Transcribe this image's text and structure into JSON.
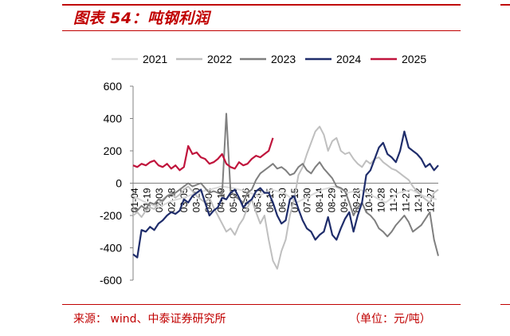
{
  "figure": {
    "title": "图表 54：吨钢利润",
    "source": "来源：  wind、中泰证券研究所",
    "unit": "（单位：元/吨）"
  },
  "colors": {
    "accent": "#c00000",
    "s2021": "#d9d9d9",
    "s2022": "#bfbfbf",
    "s2023": "#7f7f7f",
    "s2024": "#1f2d6b",
    "s2025": "#c0143c"
  },
  "chart_data": {
    "type": "line",
    "title": "",
    "xlabel": "",
    "ylabel": "",
    "ylim": [
      -600,
      600
    ],
    "yticks": [
      -600,
      -400,
      -200,
      0,
      200,
      400,
      600
    ],
    "x_ticks": [
      "01-04",
      "01-19",
      "02-03",
      "02-18",
      "03-05",
      "03-20",
      "04-04",
      "04-19",
      "05-01",
      "05-16",
      "05-31",
      "06-15",
      "06-30",
      "07-15",
      "07-30",
      "08-14",
      "08-29",
      "09-13",
      "09-28",
      "10-13",
      "10-28",
      "11-12",
      "11-27",
      "12-12",
      "12-27"
    ],
    "grid": false,
    "legend_position": "top",
    "series": [
      {
        "name": "2021",
        "x": [
          0,
          15,
          30,
          45,
          60,
          75,
          90,
          105,
          118,
          133,
          148,
          163,
          178,
          193,
          208,
          223,
          238,
          253,
          268,
          283,
          298,
          313,
          328,
          343,
          358
        ],
        "y": [
          -80,
          -120,
          -150,
          -110,
          -90,
          -60,
          -40,
          -20,
          -30,
          -50,
          -80,
          -40,
          -60,
          -120,
          -80,
          -40,
          -20,
          -60,
          -40,
          -80,
          -120,
          -60,
          -40,
          -80,
          -100
        ]
      },
      {
        "name": "2022",
        "x": [
          0,
          5,
          10,
          15,
          20,
          25,
          30,
          35,
          40,
          45,
          50,
          55,
          60,
          65,
          70,
          75,
          80,
          85,
          90,
          95,
          100,
          105,
          110,
          115,
          120,
          125,
          130,
          135,
          140,
          145,
          150,
          155,
          160,
          165,
          170,
          175,
          180,
          185,
          190,
          195,
          200,
          205,
          210,
          215,
          220,
          225,
          230,
          235,
          240,
          245,
          250,
          255,
          260,
          265,
          270,
          275,
          280,
          285,
          290,
          295,
          300,
          305,
          310,
          315,
          320,
          325,
          330,
          335,
          340,
          345,
          350,
          355,
          360
        ],
        "y": [
          -200,
          -180,
          -210,
          -170,
          -150,
          -160,
          -130,
          -100,
          -80,
          -60,
          -90,
          -70,
          -40,
          -20,
          -50,
          -80,
          -100,
          -120,
          -90,
          -150,
          -200,
          -250,
          -300,
          -280,
          -320,
          -260,
          -220,
          -150,
          -100,
          -180,
          -250,
          -200,
          -350,
          -480,
          -530,
          -420,
          -350,
          -200,
          -100,
          50,
          100,
          180,
          250,
          320,
          350,
          300,
          200,
          260,
          280,
          200,
          180,
          190,
          150,
          120,
          100,
          140,
          120,
          150,
          160,
          130,
          110,
          90,
          80,
          60,
          40,
          20,
          -20,
          -50,
          -80,
          -100,
          -120,
          -60,
          -40
        ]
      },
      {
        "name": "2023",
        "x": [
          0,
          5,
          10,
          15,
          20,
          25,
          30,
          35,
          40,
          45,
          50,
          55,
          60,
          65,
          70,
          75,
          80,
          85,
          90,
          95,
          100,
          105,
          110,
          115,
          120,
          125,
          130,
          135,
          140,
          145,
          150,
          155,
          160,
          165,
          170,
          175,
          180,
          185,
          190,
          195,
          200,
          205,
          210,
          215,
          220,
          225,
          230,
          235,
          240,
          245,
          250,
          255,
          260,
          265,
          270,
          275,
          280,
          285,
          290,
          295,
          300,
          305,
          310,
          315,
          320,
          325,
          330,
          335,
          340,
          345,
          350,
          355,
          360
        ],
        "y": [
          -150,
          -170,
          -140,
          -160,
          -120,
          -130,
          -100,
          -110,
          -80,
          -70,
          -60,
          -40,
          -20,
          0,
          -20,
          -10,
          0,
          -30,
          -60,
          -50,
          -60,
          -70,
          430,
          -50,
          -80,
          -100,
          -120,
          -60,
          -40,
          20,
          60,
          80,
          100,
          120,
          90,
          100,
          80,
          50,
          60,
          100,
          120,
          80,
          60,
          100,
          130,
          90,
          60,
          30,
          -20,
          -30,
          -50,
          -120,
          -200,
          -150,
          -120,
          -180,
          -200,
          -230,
          -280,
          -300,
          -330,
          -300,
          -260,
          -230,
          -200,
          -240,
          -300,
          -280,
          -260,
          -220,
          -180,
          -350,
          -450
        ]
      },
      {
        "name": "2024",
        "x": [
          0,
          5,
          10,
          15,
          20,
          25,
          30,
          35,
          40,
          45,
          50,
          55,
          60,
          65,
          70,
          75,
          80,
          85,
          90,
          95,
          100,
          105,
          110,
          115,
          120,
          125,
          130,
          135,
          140,
          145,
          150,
          155,
          160,
          165,
          170,
          175,
          180,
          185,
          190,
          195,
          200,
          205,
          210,
          215,
          220,
          225,
          230,
          235,
          240,
          245,
          250,
          255,
          260,
          265,
          270,
          275,
          280,
          285,
          290,
          295,
          300,
          305,
          310,
          315,
          320,
          325,
          330,
          335,
          340,
          345,
          350,
          355,
          360
        ],
        "y": [
          -440,
          -460,
          -290,
          -300,
          -270,
          -290,
          -250,
          -230,
          -200,
          -180,
          -190,
          -170,
          -100,
          -120,
          -80,
          -60,
          -40,
          -120,
          -200,
          -170,
          -150,
          -90,
          -100,
          -60,
          -40,
          -90,
          -150,
          -120,
          -100,
          -50,
          -30,
          -60,
          -60,
          -120,
          -200,
          -250,
          -230,
          -100,
          -80,
          -160,
          -230,
          -280,
          -300,
          -350,
          -320,
          -300,
          -210,
          -320,
          -350,
          -280,
          -220,
          -180,
          -300,
          -200,
          -120,
          50,
          80,
          150,
          220,
          250,
          180,
          160,
          130,
          200,
          320,
          220,
          200,
          180,
          150,
          100,
          120,
          80,
          110
        ]
      },
      {
        "name": "2025",
        "x": [
          0,
          5,
          10,
          15,
          20,
          25,
          30,
          35,
          40,
          45,
          50,
          55,
          60,
          65,
          70,
          75,
          80,
          85,
          90,
          95,
          100,
          105,
          110,
          115,
          120,
          125,
          130,
          135,
          140,
          145,
          150,
          155,
          160,
          165
        ],
        "y": [
          110,
          100,
          120,
          110,
          130,
          140,
          110,
          100,
          120,
          90,
          110,
          80,
          100,
          230,
          180,
          190,
          160,
          150,
          120,
          130,
          150,
          180,
          120,
          100,
          90,
          130,
          110,
          120,
          150,
          170,
          160,
          180,
          200,
          280
        ]
      }
    ]
  }
}
